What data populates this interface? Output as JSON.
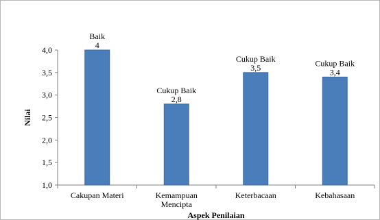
{
  "chart_data": {
    "type": "bar",
    "categories": [
      [
        "Cakupan Materi"
      ],
      [
        "Kemampuan",
        "Mencipta"
      ],
      [
        "Keterbacaan"
      ],
      [
        "Kebahasaan"
      ]
    ],
    "values": [
      4.0,
      2.8,
      3.5,
      3.4
    ],
    "value_labels": [
      "4",
      "2,8",
      "3,5",
      "3,4"
    ],
    "category_ratings": [
      "Baik",
      "Cukup Baik",
      "Cukup Baik",
      "Cukup Baik"
    ],
    "ylabel": "Nilai",
    "xlabel": "Aspek Penilaian",
    "ylim": [
      1.0,
      4.0
    ],
    "yticks": [
      1.0,
      1.5,
      2.0,
      2.5,
      3.0,
      3.5,
      4.0
    ],
    "ytick_labels": [
      "1,0",
      "1,5",
      "2,0",
      "2,5",
      "3,0",
      "3,5",
      "4,0"
    ],
    "grid": false,
    "legend": "none",
    "colors": {
      "bar": "#4a7ebb",
      "bar_edge": "#3b6aa1",
      "axis": "#7f7f7f"
    }
  }
}
